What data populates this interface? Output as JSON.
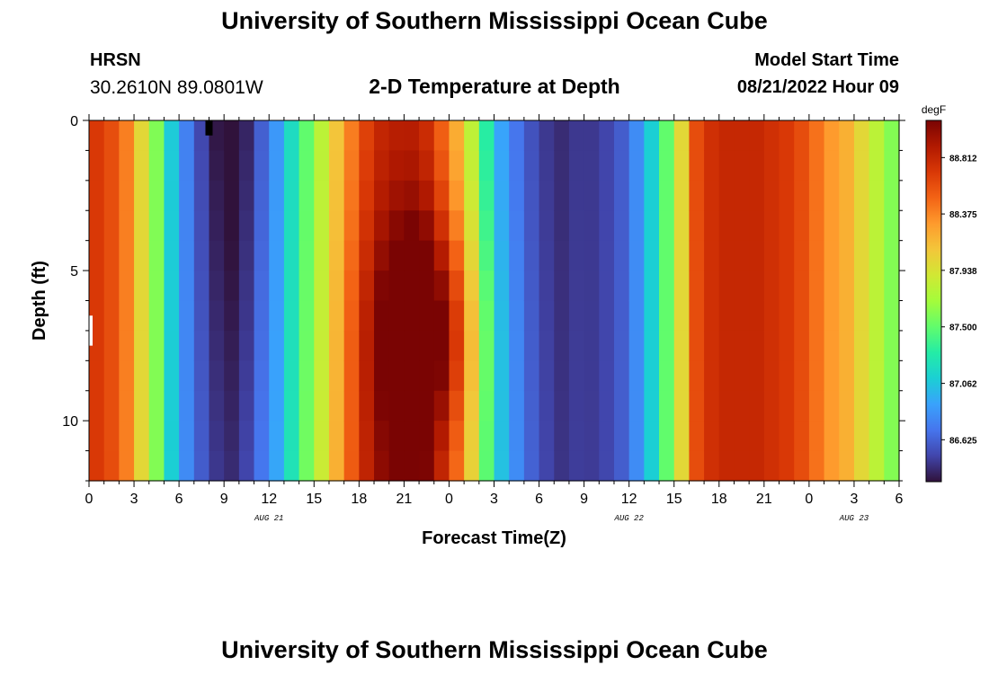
{
  "header": {
    "title": "University of Southern Mississippi Ocean Cube",
    "station": "HRSN",
    "coordinates": "30.2610N  89.0801W",
    "subtitle": "2-D Temperature at Depth",
    "model_start_label": "Model Start Time",
    "model_start_value": "08/21/2022 Hour 09"
  },
  "footer": {
    "title": "University of Southern Mississippi Ocean Cube"
  },
  "chart_data": {
    "type": "heatmap",
    "title": "2-D Temperature at Depth",
    "xlabel": "Forecast Time(Z)",
    "ylabel": "Depth (ft)",
    "x_ticks": [
      "0",
      "3",
      "6",
      "9",
      "12",
      "15",
      "18",
      "21",
      "0",
      "3",
      "6",
      "9",
      "12",
      "15",
      "18",
      "21",
      "0",
      "3",
      "6"
    ],
    "x_tick_hours": [
      0,
      3,
      6,
      9,
      12,
      15,
      18,
      21,
      24,
      27,
      30,
      33,
      36,
      39,
      42,
      45,
      48,
      51,
      54
    ],
    "date_labels": [
      {
        "label": "AUG 21",
        "hour": 12
      },
      {
        "label": "AUG 22",
        "hour": 36
      },
      {
        "label": "AUG 23",
        "hour": 51
      }
    ],
    "y_ticks": [
      "0",
      "5",
      "10"
    ],
    "y_tick_values": [
      0,
      5,
      10
    ],
    "xlim": [
      0,
      54
    ],
    "ylim": [
      0,
      12
    ],
    "colorbar": {
      "unit": "degF",
      "ticks": [
        "86.625",
        "87.062",
        "87.500",
        "87.938",
        "88.375",
        "88.812"
      ],
      "tick_values": [
        86.625,
        87.062,
        87.5,
        87.938,
        88.375,
        88.812
      ],
      "range": [
        86.3,
        89.1
      ],
      "colors": [
        "#30123b",
        "#4145ab",
        "#4675ed",
        "#39a2fc",
        "#1bcfd4",
        "#24eca6",
        "#61fc6c",
        "#a4fc3b",
        "#d1e834",
        "#f3c63a",
        "#fe9b2d",
        "#f36315",
        "#d93806",
        "#b11901",
        "#7a0403"
      ]
    },
    "hours": [
      0,
      1,
      2,
      3,
      4,
      5,
      6,
      7,
      8,
      9,
      10,
      11,
      12,
      13,
      14,
      15,
      16,
      17,
      18,
      19,
      20,
      21,
      22,
      23,
      24,
      25,
      26,
      27,
      28,
      29,
      30,
      31,
      32,
      33,
      34,
      35,
      36,
      37,
      38,
      39,
      40,
      41,
      42,
      43,
      44,
      45,
      46,
      47,
      48,
      49,
      50,
      51,
      52,
      53,
      54
    ],
    "depths": [
      0,
      1,
      2,
      3,
      4,
      5,
      6,
      7,
      8,
      9,
      10,
      11,
      12
    ],
    "profile": [
      88.7,
      88.6,
      88.4,
      88.0,
      87.6,
      87.1,
      86.8,
      86.6,
      86.45,
      86.4,
      86.5,
      86.7,
      86.9,
      87.2,
      87.5,
      87.8,
      88.1,
      88.4,
      88.65,
      88.8,
      88.85,
      88.85,
      88.75,
      88.5,
      88.2,
      87.8,
      87.3,
      86.9,
      86.7,
      86.55,
      86.45,
      86.4,
      86.45,
      86.45,
      86.5,
      86.6,
      86.8,
      87.1,
      87.5,
      88.0,
      88.6,
      88.75,
      88.8,
      88.8,
      88.8,
      88.75,
      88.7,
      88.6,
      88.45,
      88.3,
      88.2,
      88.0,
      87.8,
      87.6,
      87.5
    ],
    "diurnal_peak_hour": 22,
    "diurnal_peak_depth": 7,
    "missing_cells": [
      {
        "hour": 8,
        "depth_top": 0,
        "depth_bottom": 0.5,
        "color": "#000000"
      },
      {
        "hour": 0,
        "depth_top": 6.5,
        "depth_bottom": 7.5,
        "color": "#ffffff"
      }
    ]
  }
}
